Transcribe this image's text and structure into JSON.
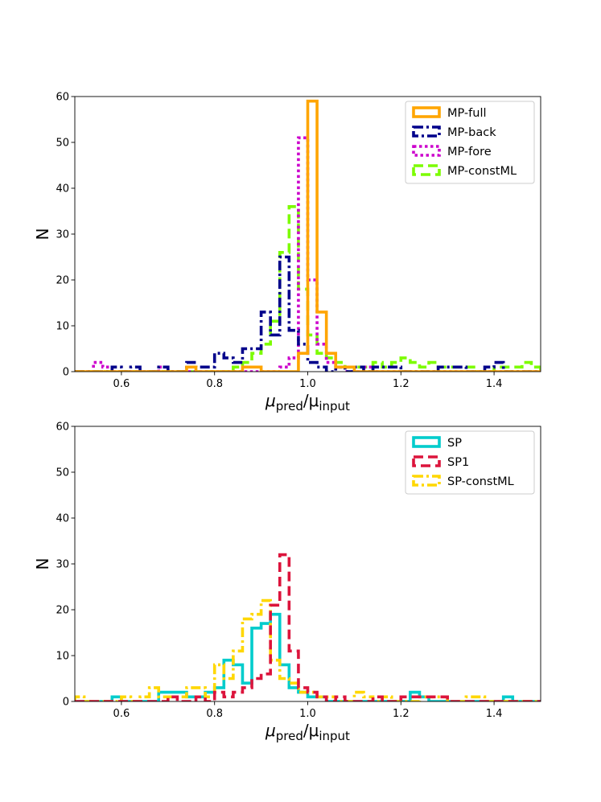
{
  "chart_data": [
    {
      "type": "histogram",
      "xlabel_main": "μ",
      "xlabel_sub1": "pred",
      "xlabel_sep": "/μ",
      "xlabel_sub2": "input",
      "ylabel": "N",
      "xlim": [
        0.5,
        1.5
      ],
      "ylim": [
        0,
        60
      ],
      "xticks": [
        0.6,
        0.8,
        1.0,
        1.2,
        1.4
      ],
      "xtick_labels": [
        "0.6",
        "0.8",
        "1.0",
        "1.2",
        "1.4"
      ],
      "yticks": [
        0,
        10,
        20,
        30,
        40,
        50,
        60
      ],
      "ytick_labels": [
        "0",
        "10",
        "20",
        "30",
        "40",
        "50",
        "60"
      ],
      "legend_position": "top-right",
      "series": [
        {
          "name": "MP-constML",
          "color": "#7cfc00",
          "dash": "dashed",
          "edges": [
            0.5,
            0.52,
            0.54,
            0.56,
            0.58,
            0.6,
            0.62,
            0.64,
            0.66,
            0.68,
            0.7,
            0.72,
            0.74,
            0.76,
            0.78,
            0.8,
            0.82,
            0.84,
            0.86,
            0.88,
            0.9,
            0.92,
            0.94,
            0.96,
            0.98,
            1.0,
            1.02,
            1.04,
            1.06,
            1.08,
            1.1,
            1.12,
            1.14,
            1.16,
            1.18,
            1.2,
            1.22,
            1.24,
            1.26,
            1.28,
            1.3,
            1.32,
            1.34,
            1.36,
            1.38,
            1.4,
            1.42,
            1.44,
            1.46,
            1.48,
            1.5
          ],
          "counts": [
            0,
            0,
            0,
            0,
            0,
            0,
            0,
            0,
            0,
            0,
            0,
            0,
            0,
            0,
            0,
            0,
            0,
            1,
            2,
            4,
            6,
            11,
            26,
            36,
            18,
            8,
            4,
            3,
            2,
            1,
            1,
            1,
            2,
            1,
            2,
            3,
            2,
            1,
            2,
            1,
            1,
            1,
            1,
            0,
            0,
            1,
            1,
            1,
            2,
            1
          ]
        },
        {
          "name": "MP-fore",
          "color": "#cc00cc",
          "dash": "dotted",
          "edges": [
            0.5,
            0.52,
            0.54,
            0.56,
            0.58,
            0.6,
            0.62,
            0.64,
            0.66,
            0.68,
            0.7,
            0.72,
            0.74,
            0.76,
            0.78,
            0.8,
            0.82,
            0.84,
            0.86,
            0.88,
            0.9,
            0.92,
            0.94,
            0.96,
            0.98,
            1.0,
            1.02,
            1.04,
            1.06,
            1.08,
            1.1,
            1.12,
            1.14,
            1.16,
            1.18,
            1.2,
            1.22,
            1.24,
            1.26,
            1.28,
            1.3,
            1.32,
            1.34,
            1.36,
            1.38,
            1.4,
            1.42,
            1.44,
            1.46,
            1.48,
            1.5
          ],
          "counts": [
            0,
            0,
            2,
            1,
            0,
            0,
            0,
            0,
            0,
            1,
            0,
            0,
            0,
            0,
            0,
            0,
            0,
            0,
            0,
            0,
            0,
            0,
            1,
            3,
            51,
            20,
            6,
            2,
            1,
            0,
            0,
            1,
            0,
            0,
            0,
            0,
            0,
            0,
            0,
            0,
            0,
            0,
            0,
            0,
            0,
            0,
            0,
            0,
            0,
            0
          ]
        },
        {
          "name": "MP-back",
          "color": "#00008b",
          "dash": "dashdot",
          "edges": [
            0.5,
            0.52,
            0.54,
            0.56,
            0.58,
            0.6,
            0.62,
            0.64,
            0.66,
            0.68,
            0.7,
            0.72,
            0.74,
            0.76,
            0.78,
            0.8,
            0.82,
            0.84,
            0.86,
            0.88,
            0.9,
            0.92,
            0.94,
            0.96,
            0.98,
            1.0,
            1.02,
            1.04,
            1.06,
            1.08,
            1.1,
            1.12,
            1.14,
            1.16,
            1.18,
            1.2,
            1.22,
            1.24,
            1.26,
            1.28,
            1.3,
            1.32,
            1.34,
            1.36,
            1.38,
            1.4,
            1.42,
            1.44,
            1.46,
            1.48,
            1.5
          ],
          "counts": [
            0,
            0,
            0,
            0,
            1,
            0,
            1,
            0,
            0,
            1,
            0,
            0,
            2,
            1,
            1,
            4,
            3,
            2,
            5,
            5,
            13,
            8,
            25,
            9,
            6,
            2,
            1,
            0,
            1,
            0,
            1,
            0,
            1,
            1,
            1,
            0,
            0,
            0,
            0,
            1,
            1,
            1,
            0,
            0,
            1,
            2,
            0,
            0,
            0,
            0
          ]
        },
        {
          "name": "MP-full",
          "color": "#ffa500",
          "dash": "solid",
          "edges": [
            0.5,
            0.52,
            0.54,
            0.56,
            0.58,
            0.6,
            0.62,
            0.64,
            0.66,
            0.68,
            0.7,
            0.72,
            0.74,
            0.76,
            0.78,
            0.8,
            0.82,
            0.84,
            0.86,
            0.88,
            0.9,
            0.92,
            0.94,
            0.96,
            0.98,
            1.0,
            1.02,
            1.04,
            1.06,
            1.08,
            1.1,
            1.12,
            1.14,
            1.16,
            1.18,
            1.2,
            1.22,
            1.24,
            1.26,
            1.28,
            1.3,
            1.32,
            1.34,
            1.36,
            1.38,
            1.4,
            1.42,
            1.44,
            1.46,
            1.48,
            1.5
          ],
          "counts": [
            0,
            0,
            0,
            0,
            0,
            0,
            0,
            0,
            0,
            0,
            0,
            0,
            1,
            0,
            0,
            0,
            0,
            0,
            1,
            1,
            0,
            0,
            0,
            0,
            4,
            59,
            13,
            4,
            1,
            1,
            0,
            0,
            0,
            0,
            0,
            0,
            0,
            0,
            0,
            0,
            0,
            0,
            0,
            0,
            0,
            0,
            0,
            0,
            0,
            0
          ]
        }
      ],
      "legend_order": [
        "MP-full",
        "MP-back",
        "MP-fore",
        "MP-constML"
      ]
    },
    {
      "type": "histogram",
      "xlabel_main": "μ",
      "xlabel_sub1": "pred",
      "xlabel_sep": "/μ",
      "xlabel_sub2": "input",
      "ylabel": "N",
      "xlim": [
        0.5,
        1.5
      ],
      "ylim": [
        0,
        60
      ],
      "xticks": [
        0.6,
        0.8,
        1.0,
        1.2,
        1.4
      ],
      "xtick_labels": [
        "0.6",
        "0.8",
        "1.0",
        "1.2",
        "1.4"
      ],
      "yticks": [
        0,
        10,
        20,
        30,
        40,
        50,
        60
      ],
      "ytick_labels": [
        "0",
        "10",
        "20",
        "30",
        "40",
        "50",
        "60"
      ],
      "legend_position": "top-right",
      "series": [
        {
          "name": "SP",
          "color": "#00cccc",
          "dash": "solid",
          "edges": [
            0.5,
            0.52,
            0.54,
            0.56,
            0.58,
            0.6,
            0.62,
            0.64,
            0.66,
            0.68,
            0.7,
            0.72,
            0.74,
            0.76,
            0.78,
            0.8,
            0.82,
            0.84,
            0.86,
            0.88,
            0.9,
            0.92,
            0.94,
            0.96,
            0.98,
            1.0,
            1.02,
            1.04,
            1.06,
            1.08,
            1.1,
            1.12,
            1.14,
            1.16,
            1.18,
            1.2,
            1.22,
            1.24,
            1.26,
            1.28,
            1.3,
            1.32,
            1.34,
            1.36,
            1.38,
            1.4,
            1.42,
            1.44,
            1.46,
            1.48,
            1.5
          ],
          "counts": [
            0,
            0,
            0,
            0,
            1,
            0,
            0,
            0,
            0,
            2,
            2,
            2,
            1,
            1,
            2,
            3,
            9,
            8,
            4,
            16,
            17,
            19,
            8,
            3,
            2,
            1,
            1,
            0,
            0,
            0,
            0,
            0,
            0,
            0,
            0,
            0,
            2,
            1,
            0,
            0,
            0,
            0,
            0,
            0,
            0,
            0,
            1,
            0,
            0,
            0
          ]
        },
        {
          "name": "SP-constML",
          "color": "#ffd700",
          "dash": "dashdot",
          "edges": [
            0.5,
            0.52,
            0.54,
            0.56,
            0.58,
            0.6,
            0.62,
            0.64,
            0.66,
            0.68,
            0.7,
            0.72,
            0.74,
            0.76,
            0.78,
            0.8,
            0.82,
            0.84,
            0.86,
            0.88,
            0.9,
            0.92,
            0.94,
            0.96,
            0.98,
            1.0,
            1.02,
            1.04,
            1.06,
            1.08,
            1.1,
            1.12,
            1.14,
            1.16,
            1.18,
            1.2,
            1.22,
            1.24,
            1.26,
            1.28,
            1.3,
            1.32,
            1.34,
            1.36,
            1.38,
            1.4,
            1.42,
            1.44,
            1.46,
            1.48,
            1.5
          ],
          "counts": [
            1,
            0,
            0,
            0,
            0,
            1,
            0,
            1,
            3,
            1,
            1,
            1,
            3,
            3,
            1,
            8,
            5,
            11,
            18,
            19,
            22,
            9,
            5,
            4,
            2,
            2,
            1,
            1,
            0,
            0,
            2,
            1,
            0,
            1,
            0,
            0,
            0,
            1,
            1,
            1,
            0,
            0,
            1,
            1,
            0,
            0,
            0,
            0,
            0,
            0
          ]
        },
        {
          "name": "SP1",
          "color": "#dc143c",
          "dash": "dashed",
          "edges": [
            0.5,
            0.52,
            0.54,
            0.56,
            0.58,
            0.6,
            0.62,
            0.64,
            0.66,
            0.68,
            0.7,
            0.72,
            0.74,
            0.76,
            0.78,
            0.8,
            0.82,
            0.84,
            0.86,
            0.88,
            0.9,
            0.92,
            0.94,
            0.96,
            0.98,
            1.0,
            1.02,
            1.04,
            1.06,
            1.08,
            1.1,
            1.12,
            1.14,
            1.16,
            1.18,
            1.2,
            1.22,
            1.24,
            1.26,
            1.28,
            1.3,
            1.32,
            1.34,
            1.36,
            1.38,
            1.4,
            1.42,
            1.44,
            1.46,
            1.48,
            1.5
          ],
          "counts": [
            0,
            0,
            0,
            0,
            0,
            0,
            0,
            0,
            0,
            0,
            1,
            0,
            0,
            1,
            0,
            2,
            1,
            2,
            3,
            5,
            6,
            21,
            32,
            11,
            3,
            2,
            1,
            0,
            1,
            0,
            0,
            0,
            1,
            0,
            0,
            1,
            1,
            1,
            1,
            1,
            0,
            0,
            0,
            0,
            0,
            0,
            0,
            0,
            0,
            0
          ]
        }
      ],
      "legend_order": [
        "SP",
        "SP1",
        "SP-constML"
      ]
    }
  ]
}
